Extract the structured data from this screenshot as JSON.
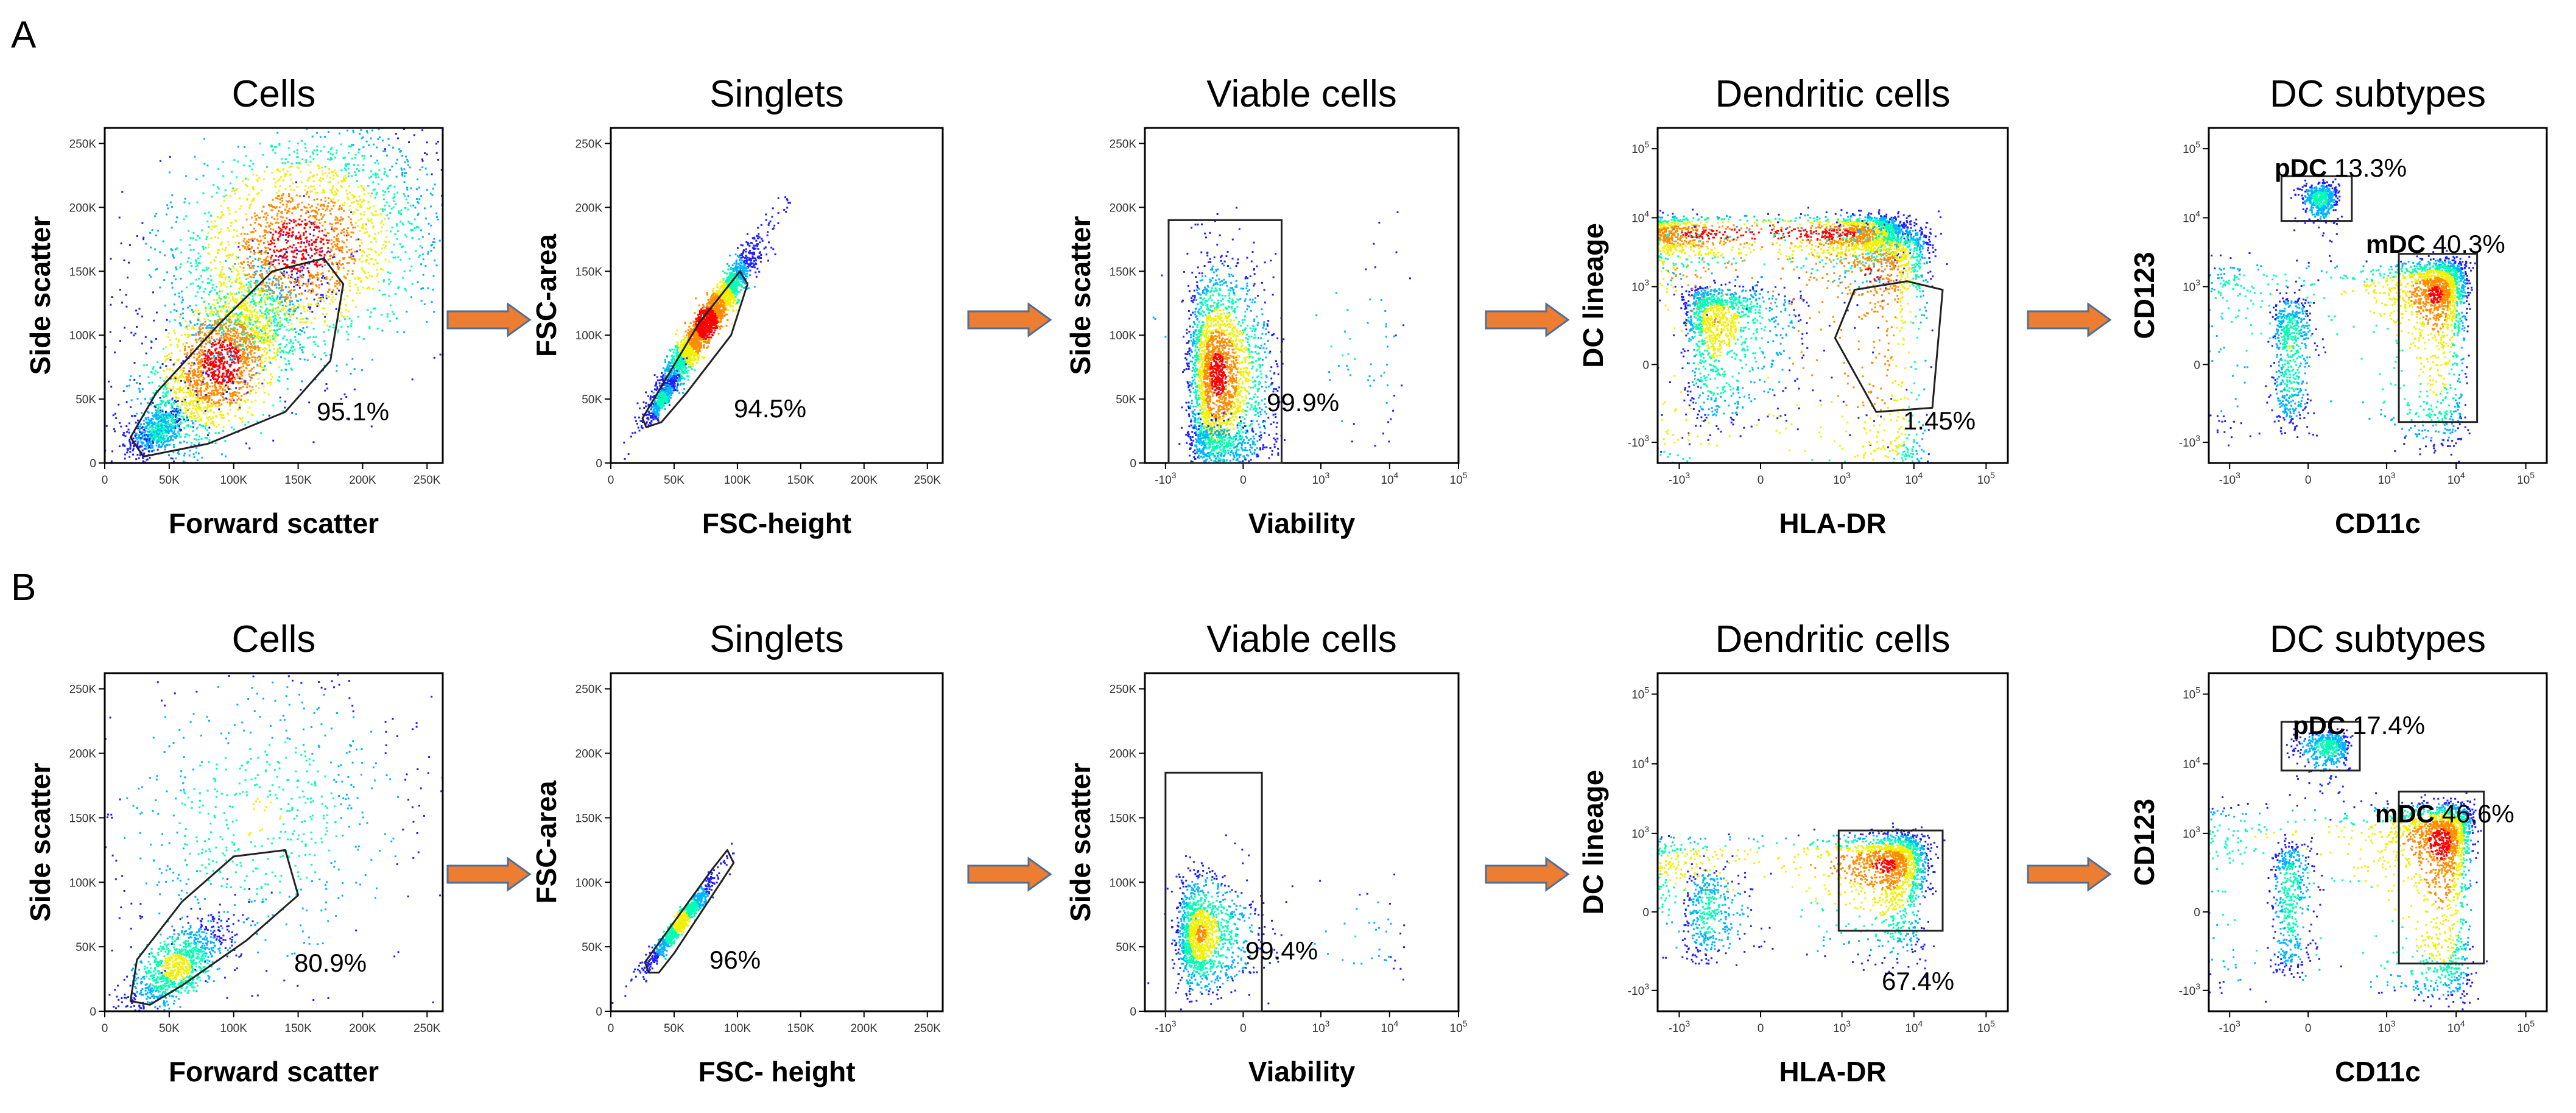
{
  "figure": {
    "panel_labels": [
      "A",
      "B"
    ],
    "arrow_color": "#ED7D31",
    "arrow_outline": "#4F6E96",
    "density_colors": [
      "#1f1fff",
      "#00b4ff",
      "#00ffb4",
      "#f0f000",
      "#ff8c00",
      "#ff0000"
    ]
  },
  "chart_data": [
    {
      "type": "scatter",
      "panel": "A",
      "title": "Cells",
      "xlabel": "Forward scatter",
      "ylabel": "Side scatter",
      "xscale": "linear",
      "yscale": "linear",
      "xlim": [
        0,
        262144
      ],
      "ylim": [
        0,
        262144
      ],
      "xticks": [
        "0",
        "50K",
        "100K",
        "150K",
        "200K",
        "250K"
      ],
      "yticks": [
        "0",
        "50K",
        "100K",
        "150K",
        "200K",
        "250K"
      ],
      "gates": [
        {
          "name": "",
          "shape": "polygon",
          "percent": "95.1%",
          "points": [
            [
              30000,
              5000
            ],
            [
              20000,
              20000
            ],
            [
              40000,
              55000
            ],
            [
              90000,
              110000
            ],
            [
              130000,
              150000
            ],
            [
              170000,
              160000
            ],
            [
              185000,
              140000
            ],
            [
              175000,
              80000
            ],
            [
              140000,
              40000
            ],
            [
              80000,
              15000
            ]
          ]
        }
      ],
      "populations": [
        {
          "cx": 40000,
          "cy": 25000,
          "sx": 10000,
          "sy": 9000,
          "n": 500,
          "rho": 0.5
        },
        {
          "cx": 90000,
          "cy": 80000,
          "sx": 35000,
          "sy": 40000,
          "n": 2500,
          "rho": 0.75
        },
        {
          "cx": 150000,
          "cy": 170000,
          "sx": 55000,
          "sy": 50000,
          "n": 2500,
          "rho": 0.4
        }
      ]
    },
    {
      "type": "scatter",
      "panel": "A",
      "title": "Singlets",
      "xlabel": "FSC-height",
      "ylabel": "FSC-area",
      "xscale": "linear",
      "yscale": "linear",
      "xlim": [
        0,
        262144
      ],
      "ylim": [
        0,
        262144
      ],
      "xticks": [
        "0",
        "50K",
        "100K",
        "150K",
        "200K",
        "250K"
      ],
      "yticks": [
        "0",
        "50K",
        "100K",
        "150K",
        "200K",
        "250K"
      ],
      "gates": [
        {
          "name": "",
          "shape": "polygon",
          "percent": "94.5%",
          "points": [
            [
              28000,
              28000
            ],
            [
              25000,
              35000
            ],
            [
              70000,
              110000
            ],
            [
              102000,
              150000
            ],
            [
              108000,
              140000
            ],
            [
              95000,
              100000
            ],
            [
              60000,
              55000
            ],
            [
              40000,
              32000
            ]
          ]
        }
      ],
      "populations": [
        {
          "cx": 75000,
          "cy": 110000,
          "sx": 20000,
          "sy": 30000,
          "n": 2500,
          "rho": 0.96
        },
        {
          "cx": 40000,
          "cy": 50000,
          "sx": 6000,
          "sy": 9000,
          "n": 400,
          "rho": 0.9
        }
      ]
    },
    {
      "type": "scatter",
      "panel": "A",
      "title": "Viable cells",
      "xlabel": "Viability",
      "ylabel": "Side scatter",
      "xscale": "biex",
      "yscale": "linear",
      "xlim": [
        -2000,
        100000
      ],
      "ylim": [
        0,
        262144
      ],
      "xticks": [
        "-10^3",
        "0",
        "10^3",
        "10^4",
        "10^5"
      ],
      "yticks": [
        "0",
        "50K",
        "100K",
        "150K",
        "200K",
        "250K"
      ],
      "gates": [
        {
          "name": "",
          "shape": "rect",
          "percent": "99.9%",
          "x0": -900,
          "x1": 250,
          "y0": 0,
          "y1": 190000
        }
      ],
      "populations": [
        {
          "cx": -150,
          "cy": 70000,
          "sx": 140,
          "sy": 40000,
          "n": 2500,
          "rho": 0
        },
        {
          "cx": -150,
          "cy": 15000,
          "sx": 140,
          "sy": 9000,
          "n": 400,
          "rho": 0
        },
        {
          "cx": 3000,
          "cy": 90000,
          "sx": 6000,
          "sy": 40000,
          "n": 80,
          "rho": 0
        }
      ]
    },
    {
      "type": "scatter",
      "panel": "A",
      "title": "Dendritic cells",
      "xlabel": "HLA-DR",
      "ylabel": "DC lineage",
      "xscale": "biex",
      "yscale": "biex",
      "xlim": [
        -2000,
        200000
      ],
      "ylim": [
        -2000,
        200000
      ],
      "xticks": [
        "-10^3",
        "0",
        "10^3",
        "10^4",
        "10^5"
      ],
      "yticks": [
        "-10^3",
        "0",
        "10^3",
        "10^4",
        "10^5"
      ],
      "gates": [
        {
          "name": "",
          "shape": "polygon",
          "percent": "1.45%",
          "points": [
            [
              800,
              150
            ],
            [
              1500,
              900
            ],
            [
              8000,
              1200
            ],
            [
              25000,
              900
            ],
            [
              18000,
              -300
            ],
            [
              3000,
              -350
            ]
          ]
        }
      ],
      "populations": [
        {
          "cx": -300,
          "cy": 300,
          "sx": 250,
          "sy": 350,
          "n": 1200,
          "rho": 0
        },
        {
          "cx": 300,
          "cy": 6000,
          "sx": 3000,
          "sy": 2500,
          "n": 2200,
          "rho": 0.1
        },
        {
          "cx": 2500,
          "cy": 1500,
          "sx": 6000,
          "sy": 3000,
          "n": 1800,
          "rho": 0.2
        }
      ]
    },
    {
      "type": "scatter",
      "panel": "A",
      "title": "DC subtypes",
      "xlabel": "CD11c",
      "ylabel": "CD123",
      "xscale": "biex",
      "yscale": "biex",
      "xlim": [
        -2000,
        200000
      ],
      "ylim": [
        -2000,
        200000
      ],
      "xticks": [
        "-10^3",
        "0",
        "10^3",
        "10^4",
        "10^5"
      ],
      "yticks": [
        "-10^3",
        "0",
        "10^3",
        "10^4",
        "10^5"
      ],
      "gates": [
        {
          "name": "pDC",
          "shape": "rect",
          "percent": "13.3%",
          "x0": -150,
          "x1": 300,
          "y0": 9000,
          "y1": 40000
        },
        {
          "name": "mDC",
          "shape": "rect",
          "percent": "40.3%",
          "x0": 1500,
          "x1": 20000,
          "y0": -500,
          "y1": 3000
        }
      ],
      "populations": [
        {
          "cx": 60,
          "cy": 20000,
          "sx": 50,
          "sy": 6000,
          "n": 500,
          "rho": 0
        },
        {
          "cx": 5000,
          "cy": 800,
          "sx": 4000,
          "sy": 800,
          "n": 2000,
          "rho": 0
        },
        {
          "cx": -100,
          "cy": 100,
          "sx": 60,
          "sy": 300,
          "n": 600,
          "rho": 0
        }
      ]
    },
    {
      "type": "scatter",
      "panel": "B",
      "title": "Cells",
      "xlabel": "Forward scatter",
      "ylabel": "Side scatter",
      "xscale": "linear",
      "yscale": "linear",
      "xlim": [
        0,
        262144
      ],
      "ylim": [
        0,
        262144
      ],
      "xticks": [
        "0",
        "50K",
        "100K",
        "150K",
        "200K",
        "250K"
      ],
      "yticks": [
        "0",
        "50K",
        "100K",
        "150K",
        "200K",
        "250K"
      ],
      "gates": [
        {
          "name": "",
          "shape": "polygon",
          "percent": "80.9%",
          "points": [
            [
              20000,
              8000
            ],
            [
              25000,
              40000
            ],
            [
              60000,
              85000
            ],
            [
              100000,
              120000
            ],
            [
              140000,
              125000
            ],
            [
              150000,
              90000
            ],
            [
              110000,
              55000
            ],
            [
              60000,
              20000
            ],
            [
              35000,
              5000
            ]
          ]
        }
      ],
      "populations": [
        {
          "cx": 55000,
          "cy": 35000,
          "sx": 20000,
          "sy": 18000,
          "n": 1000,
          "rho": 0.7
        },
        {
          "cx": 120000,
          "cy": 150000,
          "sx": 60000,
          "sy": 60000,
          "n": 700,
          "rho": 0.2
        }
      ]
    },
    {
      "type": "scatter",
      "panel": "B",
      "title": "Singlets",
      "xlabel": "FSC- height",
      "ylabel": "FSC-area",
      "xscale": "linear",
      "yscale": "linear",
      "xlim": [
        0,
        262144
      ],
      "ylim": [
        0,
        262144
      ],
      "xticks": [
        "0",
        "50K",
        "100K",
        "150K",
        "200K",
        "250K"
      ],
      "yticks": [
        "0",
        "50K",
        "100K",
        "150K",
        "200K",
        "250K"
      ],
      "gates": [
        {
          "name": "",
          "shape": "polygon",
          "percent": "96%",
          "points": [
            [
              30000,
              30000
            ],
            [
              27000,
              38000
            ],
            [
              80000,
              110000
            ],
            [
              92000,
              125000
            ],
            [
              97000,
              115000
            ],
            [
              50000,
              45000
            ],
            [
              38000,
              30000
            ]
          ]
        }
      ],
      "populations": [
        {
          "cx": 55000,
          "cy": 70000,
          "sx": 14000,
          "sy": 18000,
          "n": 900,
          "rho": 0.97
        }
      ]
    },
    {
      "type": "scatter",
      "panel": "B",
      "title": "Viable cells",
      "xlabel": "Viability",
      "ylabel": "Side scatter",
      "xscale": "biex",
      "yscale": "linear",
      "xlim": [
        -2000,
        100000
      ],
      "ylim": [
        0,
        262144
      ],
      "xticks": [
        "-10^3",
        "0",
        "10^3",
        "10^4",
        "10^5"
      ],
      "yticks": [
        "0",
        "50K",
        "100K",
        "150K",
        "200K",
        "250K"
      ],
      "gates": [
        {
          "name": "",
          "shape": "rect",
          "percent": "99.4%",
          "x0": -1000,
          "x1": 100,
          "y0": 0,
          "y1": 185000
        }
      ],
      "populations": [
        {
          "cx": -300,
          "cy": 60000,
          "sx": 180,
          "sy": 22000,
          "n": 1400,
          "rho": 0
        },
        {
          "cx": 3000,
          "cy": 60000,
          "sx": 6000,
          "sy": 20000,
          "n": 50,
          "rho": 0
        }
      ]
    },
    {
      "type": "scatter",
      "panel": "B",
      "title": "Dendritic cells",
      "xlabel": "HLA-DR",
      "ylabel": "DC lineage",
      "xscale": "biex",
      "yscale": "biex",
      "xlim": [
        -2000,
        200000
      ],
      "ylim": [
        -2000,
        200000
      ],
      "xticks": [
        "-10^3",
        "0",
        "10^3",
        "10^4",
        "10^5"
      ],
      "yticks": [
        "-10^3",
        "0",
        "10^3",
        "10^4",
        "10^5"
      ],
      "gates": [
        {
          "name": "",
          "shape": "rect",
          "percent": "67.4%",
          "x0": 900,
          "x1": 25000,
          "y0": -100,
          "y1": 1100
        }
      ],
      "populations": [
        {
          "cx": 4000,
          "cy": 350,
          "sx": 5000,
          "sy": 300,
          "n": 2000,
          "rho": 0
        },
        {
          "cx": -400,
          "cy": 0,
          "sx": 200,
          "sy": 150,
          "n": 400,
          "rho": 0
        }
      ]
    },
    {
      "type": "scatter",
      "panel": "B",
      "title": "DC subtypes",
      "xlabel": "CD11c",
      "ylabel": "CD123",
      "xscale": "biex",
      "yscale": "biex",
      "xlim": [
        -2000,
        200000
      ],
      "ylim": [
        -2000,
        200000
      ],
      "xticks": [
        "-10^3",
        "0",
        "10^3",
        "10^4",
        "10^5"
      ],
      "yticks": [
        "-10^3",
        "0",
        "10^3",
        "10^4",
        "10^5"
      ],
      "gates": [
        {
          "name": "pDC",
          "shape": "rect",
          "percent": "17.4%",
          "x0": -150,
          "x1": 400,
          "y0": 8000,
          "y1": 40000
        },
        {
          "name": "mDC",
          "shape": "rect",
          "percent": "46.6%",
          "x0": 1500,
          "x1": 25000,
          "y0": -400,
          "y1": 4000
        }
      ],
      "populations": [
        {
          "cx": 100,
          "cy": 18000,
          "sx": 80,
          "sy": 6000,
          "n": 500,
          "rho": 0
        },
        {
          "cx": 6000,
          "cy": 800,
          "sx": 5000,
          "sy": 900,
          "n": 2200,
          "rho": 0
        },
        {
          "cx": -100,
          "cy": 100,
          "sx": 60,
          "sy": 300,
          "n": 500,
          "rho": 0
        }
      ]
    }
  ]
}
